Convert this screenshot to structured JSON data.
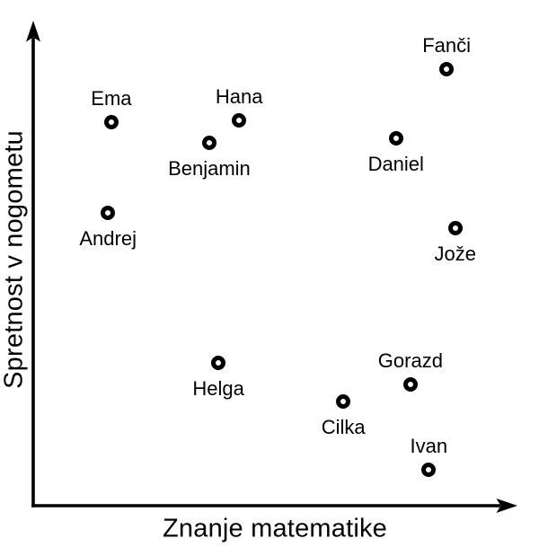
{
  "colors": {
    "ink": "#000000",
    "background": "#ffffff"
  },
  "chart_data": {
    "type": "scatter",
    "title": "",
    "xlabel": "Znanje matematike",
    "ylabel": "Spretnost v nogometu",
    "xlim": [
      0,
      100
    ],
    "ylim": [
      0,
      100
    ],
    "axis_style": "arrow-tipped axes, no ticks, no tick labels, no gridlines",
    "legend": "none",
    "marker_style": "open circle, black ring, white center",
    "points": [
      {
        "name": "Ema",
        "x": 16.0,
        "y": 79.7,
        "label_position": "above"
      },
      {
        "name": "Hana",
        "x": 42.5,
        "y": 80.0,
        "label_position": "above"
      },
      {
        "name": "Fanči",
        "x": 85.5,
        "y": 90.7,
        "label_position": "above"
      },
      {
        "name": "Benjamin",
        "x": 36.3,
        "y": 75.4,
        "label_position": "below"
      },
      {
        "name": "Daniel",
        "x": 75.0,
        "y": 76.3,
        "label_position": "below"
      },
      {
        "name": "Andrej",
        "x": 15.3,
        "y": 60.8,
        "label_position": "below"
      },
      {
        "name": "Jože",
        "x": 87.3,
        "y": 57.6,
        "label_position": "below"
      },
      {
        "name": "Helga",
        "x": 38.2,
        "y": 29.7,
        "label_position": "below"
      },
      {
        "name": "Gorazd",
        "x": 78.0,
        "y": 25.2,
        "label_position": "above"
      },
      {
        "name": "Cilka",
        "x": 64.1,
        "y": 21.6,
        "label_position": "below"
      },
      {
        "name": "Ivan",
        "x": 81.8,
        "y": 7.5,
        "label_position": "above"
      }
    ]
  }
}
